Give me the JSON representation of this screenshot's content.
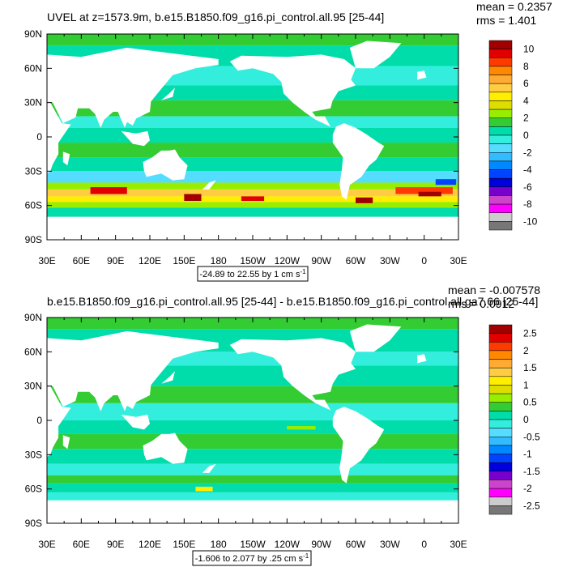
{
  "chart_data": [
    {
      "type": "heatmap",
      "title": "UVEL at z=1573.9m, b.e15.B1850.f09_g16.pi_control.all.95 [25-44]",
      "stats": {
        "mean": "mean = 0.2357",
        "rms": "rms = 1.401"
      },
      "x_ticks": [
        "30E",
        "60E",
        "90E",
        "120E",
        "150E",
        "180",
        "150W",
        "120W",
        "90W",
        "60W",
        "30W",
        "0",
        "30E"
      ],
      "y_ticks": [
        "90N",
        "60N",
        "30N",
        "0",
        "30S",
        "60S",
        "90S"
      ],
      "xlim": [
        30,
        390
      ],
      "ylim": [
        -90,
        90
      ],
      "range_label": {
        "prefix": "-24.89 to 22.55 by 1 cm s",
        "sup": "-1"
      },
      "colorbar": {
        "labels": [
          "10",
          "8",
          "6",
          "4",
          "2",
          "0",
          "-2",
          "-4",
          "-6",
          "-8",
          "-10"
        ],
        "colors": [
          "#a00000",
          "#e00000",
          "#ff3a00",
          "#ff8800",
          "#ffaa33",
          "#ffcc44",
          "#ffee00",
          "#dddd00",
          "#99ee00",
          "#33cc33",
          "#00ddaa",
          "#33eedd",
          "#55ddff",
          "#33bbff",
          "#0088ff",
          "#0044ff",
          "#0000dd",
          "#7700cc",
          "#cc44cc",
          "#ff00ff",
          "#cccccc",
          "#777777"
        ]
      },
      "zonal_bands": [
        {
          "lat_from": 90,
          "lat_to": 80,
          "color": "#33cc33"
        },
        {
          "lat_from": 80,
          "lat_to": 62,
          "color": "#00ddaa"
        },
        {
          "lat_from": 62,
          "lat_to": 45,
          "color": "#33eedd"
        },
        {
          "lat_from": 45,
          "lat_to": 32,
          "color": "#00ddaa"
        },
        {
          "lat_from": 32,
          "lat_to": 18,
          "color": "#33cc33"
        },
        {
          "lat_from": 18,
          "lat_to": 8,
          "color": "#33eedd"
        },
        {
          "lat_from": 8,
          "lat_to": -5,
          "color": "#00ddaa"
        },
        {
          "lat_from": -5,
          "lat_to": -18,
          "color": "#33cc33"
        },
        {
          "lat_from": -18,
          "lat_to": -30,
          "color": "#00ddaa"
        },
        {
          "lat_from": -30,
          "lat_to": -40,
          "color": "#55ddff"
        },
        {
          "lat_from": -40,
          "lat_to": -46,
          "color": "#99ee00"
        },
        {
          "lat_from": -46,
          "lat_to": -52,
          "color": "#ffcc44"
        },
        {
          "lat_from": -52,
          "lat_to": -57,
          "color": "#ffee00"
        },
        {
          "lat_from": -57,
          "lat_to": -62,
          "color": "#99ee00"
        },
        {
          "lat_from": -62,
          "lat_to": -70,
          "color": "#00ddaa"
        }
      ],
      "highlights": [
        {
          "lon": [
            68,
            100
          ],
          "lat": [
            -44,
            -50
          ],
          "color": "#e00000"
        },
        {
          "lon": [
            150,
            165
          ],
          "lat": [
            -50,
            -56
          ],
          "color": "#a00000"
        },
        {
          "lon": [
            200,
            220
          ],
          "lat": [
            -52,
            -56
          ],
          "color": "#e00000"
        },
        {
          "lon": [
            300,
            315
          ],
          "lat": [
            -53,
            -58
          ],
          "color": "#a00000"
        },
        {
          "lon": [
            335,
            385
          ],
          "lat": [
            -44,
            -50
          ],
          "color": "#ff3a00"
        },
        {
          "lon": [
            355,
            375
          ],
          "lat": [
            -48,
            -52
          ],
          "color": "#a00000"
        },
        {
          "lon": [
            370,
            388
          ],
          "lat": [
            -37,
            -42
          ],
          "color": "#0044ff"
        }
      ]
    },
    {
      "type": "heatmap",
      "title": "b.e15.B1850.f09_g16.pi_control.all.95 [25-44] - b.e15.B1850.f09_g16.pi_control.all.ga7.66 [25-44]",
      "stats": {
        "mean": "mean = -0.007578",
        "rms": "rms = 0.0912"
      },
      "x_ticks": [
        "30E",
        "60E",
        "90E",
        "120E",
        "150E",
        "180",
        "150W",
        "120W",
        "90W",
        "60W",
        "30W",
        "0",
        "30E"
      ],
      "y_ticks": [
        "90N",
        "60N",
        "30N",
        "0",
        "30S",
        "60S",
        "90S"
      ],
      "xlim": [
        30,
        390
      ],
      "ylim": [
        -90,
        90
      ],
      "range_label": {
        "prefix": "-1.606 to 2.077 by .25 cm s",
        "sup": "-1"
      },
      "colorbar": {
        "labels": [
          "2.5",
          "2",
          "1.5",
          "1",
          "0.5",
          "0",
          "-0.5",
          "-1",
          "-1.5",
          "-2",
          "-2.5"
        ],
        "colors": [
          "#a00000",
          "#e00000",
          "#ff3a00",
          "#ff8800",
          "#ffaa33",
          "#ffcc44",
          "#ffee00",
          "#dddd00",
          "#99ee00",
          "#33cc33",
          "#00ddaa",
          "#33eedd",
          "#55ddff",
          "#33bbff",
          "#0088ff",
          "#0044ff",
          "#0000dd",
          "#7700cc",
          "#cc44cc",
          "#ff00ff",
          "#cccccc",
          "#777777"
        ]
      },
      "zonal_bands": [
        {
          "lat_from": 90,
          "lat_to": 80,
          "color": "#33cc33"
        },
        {
          "lat_from": 80,
          "lat_to": 60,
          "color": "#00ddaa"
        },
        {
          "lat_from": 60,
          "lat_to": 48,
          "color": "#33eedd"
        },
        {
          "lat_from": 48,
          "lat_to": 30,
          "color": "#00ddaa"
        },
        {
          "lat_from": 30,
          "lat_to": 15,
          "color": "#33cc33"
        },
        {
          "lat_from": 15,
          "lat_to": 0,
          "color": "#33eedd"
        },
        {
          "lat_from": 0,
          "lat_to": -12,
          "color": "#00ddaa"
        },
        {
          "lat_from": -12,
          "lat_to": -25,
          "color": "#33cc33"
        },
        {
          "lat_from": -25,
          "lat_to": -38,
          "color": "#00ddaa"
        },
        {
          "lat_from": -38,
          "lat_to": -48,
          "color": "#33eedd"
        },
        {
          "lat_from": -48,
          "lat_to": -55,
          "color": "#33cc33"
        },
        {
          "lat_from": -55,
          "lat_to": -63,
          "color": "#00ddaa"
        },
        {
          "lat_from": -63,
          "lat_to": -70,
          "color": "#33eedd"
        }
      ],
      "highlights": [
        {
          "lon": [
            240,
            265
          ],
          "lat": [
            -5,
            -8
          ],
          "color": "#99ee00"
        },
        {
          "lon": [
            160,
            175
          ],
          "lat": [
            -58,
            -62
          ],
          "color": "#ffee00"
        }
      ]
    }
  ]
}
